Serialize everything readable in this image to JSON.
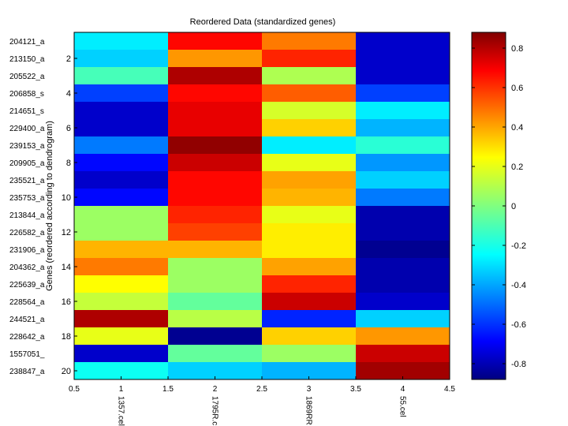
{
  "chart_data": {
    "type": "heatmap",
    "title": "Reordered Data (standardized genes)",
    "xlabel": "",
    "ylabel": "Genes (reordered according to dendrogram)",
    "x_ticks": [
      "0.5",
      "1",
      "1.5",
      "2",
      "2.5",
      "3",
      "3.5",
      "4",
      "4.5"
    ],
    "x_tick_values": [
      0.5,
      1,
      1.5,
      2,
      2.5,
      3,
      3.5,
      4,
      4.5
    ],
    "xlim": [
      0.5,
      4.5
    ],
    "columns": [
      "1357.cel",
      "1795R.c",
      "1869RR",
      "55.cel"
    ],
    "rows": [
      "204121_a",
      "213150_a",
      "205522_a",
      "206858_s",
      "214651_s",
      "229400_a",
      "239153_a",
      "209905_a",
      "235521_a",
      "235753_a",
      "213844_a",
      "226582_a",
      "231906_a",
      "204362_a",
      "225639_a",
      "228564_a",
      "244521_a",
      "228642_a",
      "1557051_",
      "238847_a"
    ],
    "y_ticks": [
      "2",
      "4",
      "6",
      "8",
      "10",
      "12",
      "14",
      "16",
      "18",
      "20"
    ],
    "y_tick_values": [
      2,
      4,
      6,
      8,
      10,
      12,
      14,
      16,
      18,
      20
    ],
    "ylim": [
      0.5,
      20.5
    ],
    "values": [
      [
        -0.25,
        0.65,
        0.45,
        -0.75
      ],
      [
        -0.3,
        0.4,
        0.6,
        -0.75
      ],
      [
        -0.1,
        0.8,
        0.08,
        -0.75
      ],
      [
        -0.55,
        0.65,
        0.5,
        -0.55
      ],
      [
        -0.75,
        0.7,
        0.15,
        -0.25
      ],
      [
        -0.75,
        0.7,
        0.3,
        -0.35
      ],
      [
        -0.45,
        0.85,
        -0.25,
        -0.15
      ],
      [
        -0.65,
        0.75,
        0.18,
        -0.4
      ],
      [
        -0.75,
        0.65,
        0.38,
        -0.3
      ],
      [
        -0.65,
        0.65,
        0.35,
        -0.45
      ],
      [
        0.05,
        0.6,
        0.18,
        -0.8
      ],
      [
        0.05,
        0.55,
        0.25,
        -0.8
      ],
      [
        0.35,
        0.35,
        0.25,
        -0.85
      ],
      [
        0.45,
        0.05,
        0.38,
        -0.8
      ],
      [
        0.22,
        0.05,
        0.6,
        -0.8
      ],
      [
        0.12,
        -0.05,
        0.75,
        -0.75
      ],
      [
        0.8,
        0.1,
        -0.6,
        -0.3
      ],
      [
        0.18,
        -0.85,
        0.3,
        0.4
      ],
      [
        -0.75,
        -0.05,
        0.05,
        0.75
      ],
      [
        -0.2,
        -0.3,
        -0.35,
        0.82
      ]
    ],
    "colorbar": {
      "colormap": "jet",
      "range": [
        -0.88,
        0.88
      ],
      "ticks": [
        "0.8",
        "0.6",
        "0.4",
        "0.2",
        "0",
        "-0.2",
        "-0.4",
        "-0.6",
        "-0.8"
      ],
      "tick_values": [
        0.8,
        0.6,
        0.4,
        0.2,
        0,
        -0.2,
        -0.4,
        -0.6,
        -0.8
      ]
    }
  }
}
